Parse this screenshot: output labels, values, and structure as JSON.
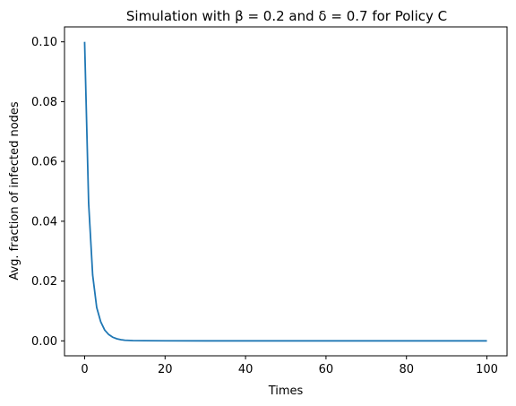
{
  "chart_data": {
    "type": "line",
    "title": "Simulation with β = 0.2 and δ = 0.7 for Policy C",
    "xlabel": "Times",
    "ylabel": "Avg. fraction of infected nodes",
    "xlim": [
      -5,
      105
    ],
    "ylim": [
      -0.005,
      0.105
    ],
    "x_ticks": [
      0,
      20,
      40,
      60,
      80,
      100
    ],
    "x_tick_labels": [
      "0",
      "20",
      "40",
      "60",
      "80",
      "100"
    ],
    "y_ticks": [
      0.0,
      0.02,
      0.04,
      0.06,
      0.08,
      0.1
    ],
    "y_tick_labels": [
      "0.00",
      "0.02",
      "0.04",
      "0.06",
      "0.08",
      "0.10"
    ],
    "grid": false,
    "legend": false,
    "series": [
      {
        "name": "Policy C",
        "color": "#1f77b4",
        "x": [
          0,
          1,
          2,
          3,
          4,
          5,
          6,
          7,
          8,
          9,
          10,
          12,
          15,
          20,
          30,
          40,
          50,
          60,
          70,
          80,
          90,
          100
        ],
        "values": [
          0.1,
          0.046,
          0.022,
          0.0112,
          0.0064,
          0.0036,
          0.0021,
          0.0012,
          0.0007,
          0.0004,
          0.0002,
          0.0001,
          5e-05,
          2e-05,
          0.0,
          0.0,
          0.0,
          0.0,
          0.0,
          0.0,
          0.0,
          0.0
        ]
      }
    ]
  }
}
